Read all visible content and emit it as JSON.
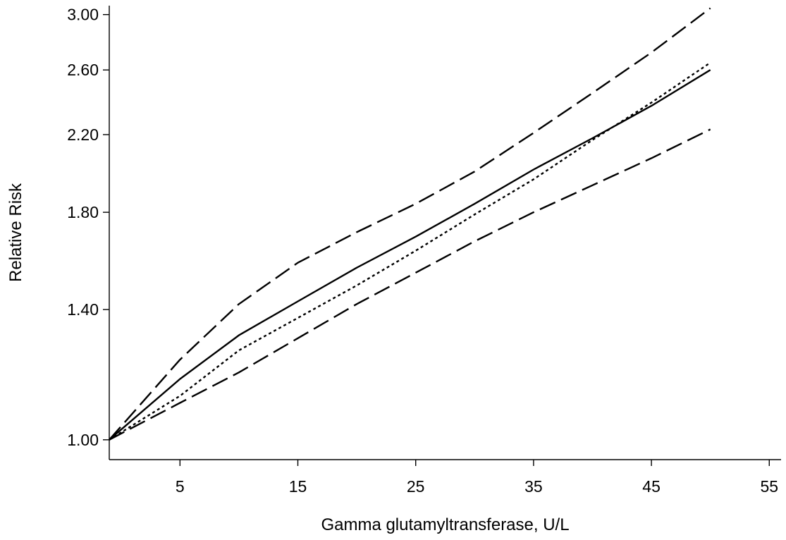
{
  "chart_data": {
    "type": "line",
    "title": "",
    "xlabel": "Gamma glutamyltransferase, U/L",
    "ylabel": "Relative Risk",
    "xlim": [
      -1,
      56
    ],
    "ylim": [
      0.95,
      3.07
    ],
    "x_ticks": [
      5,
      15,
      25,
      35,
      45,
      55
    ],
    "x_tick_labels": [
      "5",
      "15",
      "25",
      "35",
      "45",
      "55"
    ],
    "y_ticks": [
      1.0,
      1.4,
      1.8,
      2.2,
      2.6,
      3.0
    ],
    "y_tick_labels": [
      "1.00",
      "1.40",
      "1.80",
      "2.20",
      "2.60",
      "3.00"
    ],
    "y_scale": "log",
    "grid": false,
    "legend": "none",
    "series": [
      {
        "line_style": "solid",
        "x": [
          -1,
          5,
          10,
          15,
          20,
          25,
          30,
          35,
          40,
          45,
          50
        ],
        "values": [
          1.0,
          1.17,
          1.31,
          1.43,
          1.56,
          1.69,
          1.84,
          2.01,
          2.18,
          2.37,
          2.6
        ]
      },
      {
        "line_style": "short-dash",
        "x": [
          -1,
          5,
          10,
          15,
          20,
          25,
          30,
          35,
          40,
          45,
          50
        ],
        "values": [
          1.0,
          1.12,
          1.26,
          1.37,
          1.49,
          1.63,
          1.79,
          1.96,
          2.17,
          2.39,
          2.65
        ]
      },
      {
        "line_style": "long-dash",
        "x": [
          -1,
          5,
          10,
          15,
          20,
          25,
          30,
          35,
          40,
          45,
          50
        ],
        "values": [
          1.0,
          1.23,
          1.42,
          1.58,
          1.71,
          1.84,
          2.0,
          2.21,
          2.45,
          2.72,
          3.05
        ]
      },
      {
        "line_style": "long-dash",
        "x": [
          -1,
          5,
          10,
          15,
          20,
          25,
          30,
          35,
          40,
          45,
          50
        ],
        "values": [
          1.0,
          1.1,
          1.19,
          1.3,
          1.42,
          1.54,
          1.67,
          1.8,
          1.93,
          2.07,
          2.23
        ]
      }
    ]
  }
}
